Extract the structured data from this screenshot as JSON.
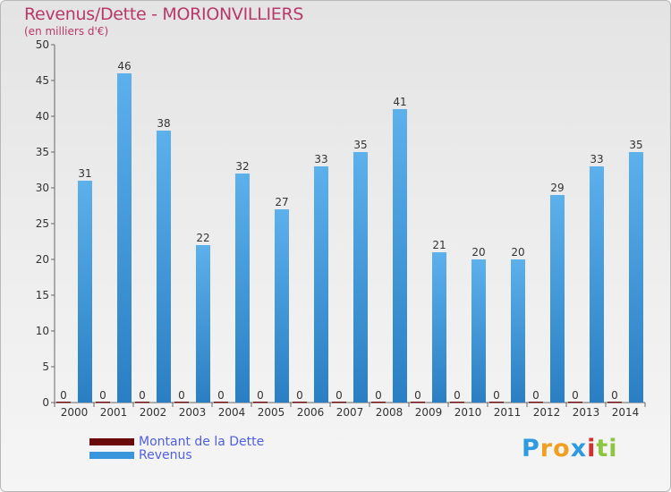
{
  "chart_data": {
    "type": "bar",
    "title": "Revenus/Dette - MORIONVILLIERS",
    "subtitle": "(en milliers d'€)",
    "categories": [
      "2000",
      "2001",
      "2002",
      "2003",
      "2004",
      "2005",
      "2006",
      "2007",
      "2008",
      "2009",
      "2010",
      "2011",
      "2012",
      "2013",
      "2014"
    ],
    "series": [
      {
        "name": "Montant de la Dette",
        "color": "#6b0a0a",
        "values": [
          0,
          0,
          0,
          0,
          0,
          0,
          0,
          0,
          0,
          0,
          0,
          0,
          0,
          0,
          0
        ]
      },
      {
        "name": "Revenus",
        "color": "#3a96dc",
        "values": [
          31,
          46,
          38,
          22,
          32,
          27,
          33,
          35,
          41,
          21,
          20,
          20,
          29,
          33,
          35
        ]
      }
    ],
    "ylim": [
      0,
      50
    ],
    "yticks": [
      0,
      5,
      10,
      15,
      20,
      25,
      30,
      35,
      40,
      45,
      50
    ],
    "grid": false,
    "legend_position": "bottom-left"
  },
  "logo": {
    "text": "Proxiti",
    "letters": [
      "P",
      "r",
      "o",
      "x",
      "i",
      "t",
      "i"
    ],
    "colors": [
      "#2e9be0",
      "#f0a020",
      "#f0a020",
      "#2e9be0",
      "#d42e2e",
      "#8cc63e",
      "#8cc63e"
    ]
  }
}
